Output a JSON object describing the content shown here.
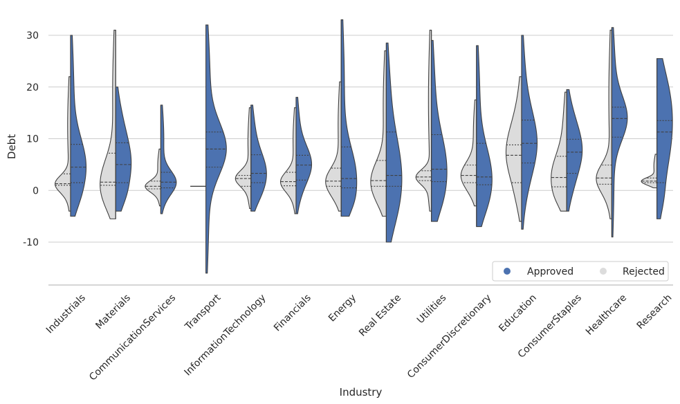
{
  "chart_data": {
    "type": "violin",
    "split": true,
    "xlabel": "Industry",
    "ylabel": "Debt",
    "ylim": [
      -18,
      34
    ],
    "yticks": [
      -10,
      0,
      10,
      20,
      30
    ],
    "grid": "horizontal",
    "legend_position": "bottom-right",
    "colors": {
      "Approved": "#4c72b0",
      "Rejected": "#dcdcdc",
      "outline": "#3f3f3f",
      "grid": "#cccccc"
    },
    "legend": [
      {
        "name": "Approved",
        "color": "#4c72b0"
      },
      {
        "name": "Rejected",
        "color": "#dcdcdc"
      }
    ],
    "categories": [
      "Industrials",
      "Materials",
      "CommunicationServices",
      "Transport",
      "InformationTechnology",
      "Financials",
      "Energy",
      "Real Estate",
      "Utilities",
      "ConsumerDiscretionary",
      "Education",
      "ConsumerStaples",
      "Healthcare",
      "Research"
    ],
    "series": [
      {
        "name": "Rejected",
        "violins": [
          {
            "min": -4,
            "max": 22,
            "q1": 1.0,
            "median": 1.3,
            "q3": 3.2,
            "width": 0.75
          },
          {
            "min": -5.5,
            "max": 31,
            "q1": 1.0,
            "median": 1.6,
            "q3": 7.2,
            "width": 0.75
          },
          {
            "min": -3,
            "max": 8,
            "q1": 0.3,
            "median": 0.8,
            "q3": 1.8,
            "width": 0.75
          },
          {
            "min": 0.8,
            "max": 0.8,
            "q1": 0.8,
            "median": 0.8,
            "q3": 0.8,
            "width": 0.75,
            "flat": true
          },
          {
            "min": -3.5,
            "max": 16,
            "q1": 0.8,
            "median": 2.3,
            "q3": 2.9,
            "width": 0.75
          },
          {
            "min": -4.5,
            "max": 16,
            "q1": 0.9,
            "median": 1.7,
            "q3": 3.5,
            "width": 0.75
          },
          {
            "min": -4,
            "max": 21,
            "q1": 0.8,
            "median": 1.8,
            "q3": 4.3,
            "width": 0.75
          },
          {
            "min": -5,
            "max": 27,
            "q1": 0.8,
            "median": 1.9,
            "q3": 5.8,
            "width": 0.75
          },
          {
            "min": -4,
            "max": 31,
            "q1": 1.9,
            "median": 2.6,
            "q3": 3.8,
            "width": 0.75
          },
          {
            "min": -3,
            "max": 17.5,
            "q1": 1.5,
            "median": 2.9,
            "q3": 4.9,
            "width": 0.75
          },
          {
            "min": -6,
            "max": 22,
            "q1": 1.5,
            "median": 6.8,
            "q3": 8.8,
            "width": 0.75
          },
          {
            "min": -4,
            "max": 19,
            "q1": 0.7,
            "median": 2.5,
            "q3": 6.6,
            "width": 0.75
          },
          {
            "min": -5.5,
            "max": 31,
            "q1": 1.2,
            "median": 2.4,
            "q3": 4.9,
            "width": 0.75
          },
          {
            "min": 0.5,
            "max": 7,
            "q1": 1.5,
            "median": 1.8,
            "q3": 2.4,
            "width": 0.75
          }
        ]
      },
      {
        "name": "Approved",
        "violins": [
          {
            "min": -5,
            "max": 30,
            "q1": 1.5,
            "median": 4.5,
            "q3": 8.9,
            "width": 0.75
          },
          {
            "min": -4,
            "max": 20,
            "q1": 1.5,
            "median": 5.0,
            "q3": 9.2,
            "width": 0.75
          },
          {
            "min": -4.5,
            "max": 16.5,
            "q1": 0.5,
            "median": 1.6,
            "q3": 3.5,
            "width": 0.75
          },
          {
            "min": -16,
            "max": 32,
            "q1": 4.5,
            "median": 8.0,
            "q3": 11.3,
            "width": 0.99
          },
          {
            "min": -4,
            "max": 16.5,
            "q1": 1.5,
            "median": 3.3,
            "q3": 6.9,
            "width": 0.75
          },
          {
            "min": -4.5,
            "max": 18,
            "q1": 2.0,
            "median": 4.9,
            "q3": 6.8,
            "width": 0.75
          },
          {
            "min": -5,
            "max": 33,
            "q1": 0.5,
            "median": 2.3,
            "q3": 8.4,
            "width": 0.75
          },
          {
            "min": -10,
            "max": 28.5,
            "q1": 0.8,
            "median": 2.9,
            "q3": 11.3,
            "width": 0.75
          },
          {
            "min": -6,
            "max": 29,
            "q1": 1.7,
            "median": 4.1,
            "q3": 10.8,
            "width": 0.75
          },
          {
            "min": -7,
            "max": 28,
            "q1": 1.1,
            "median": 2.6,
            "q3": 9.1,
            "width": 0.75
          },
          {
            "min": -7.5,
            "max": 30,
            "q1": 5.3,
            "median": 9.1,
            "q3": 13.6,
            "width": 0.75
          },
          {
            "min": -4,
            "max": 19.5,
            "q1": 3.3,
            "median": 7.4,
            "q3": 9.9,
            "width": 0.75
          },
          {
            "min": -9,
            "max": 31.5,
            "q1": 10.3,
            "median": 13.9,
            "q3": 16.1,
            "width": 0.75
          },
          {
            "min": -5.5,
            "max": 25.5,
            "q1": 1.5,
            "median": 11.3,
            "q3": 13.5,
            "width": 0.75
          }
        ]
      }
    ]
  }
}
